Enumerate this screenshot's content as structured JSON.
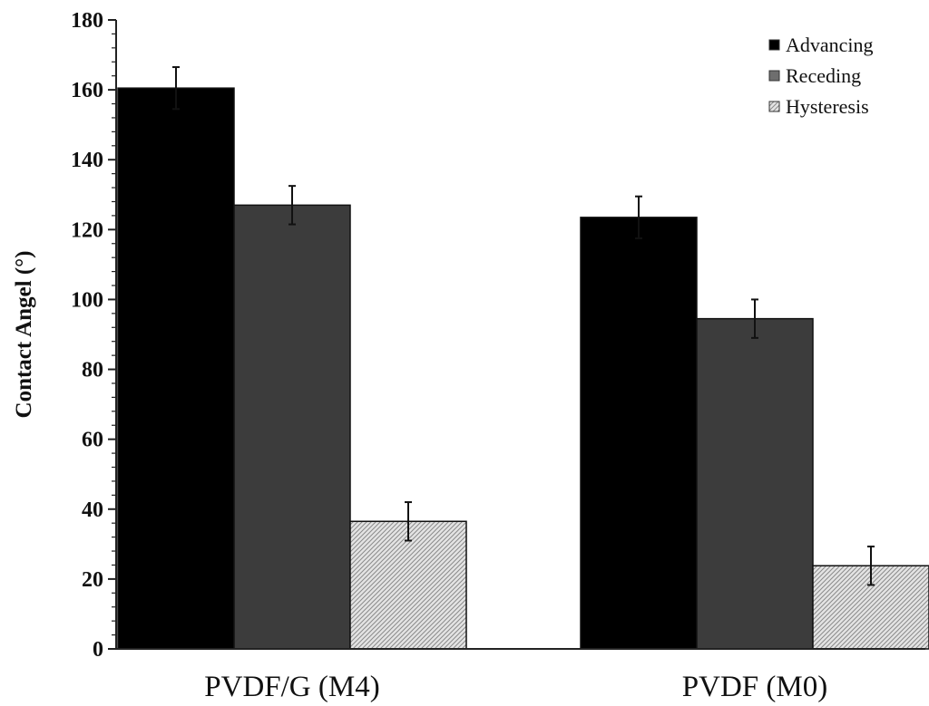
{
  "chart_data": {
    "type": "bar",
    "title": "",
    "xlabel": "",
    "ylabel": "Contact Angel (°)",
    "ylim": [
      0,
      180
    ],
    "ytick_step": 20,
    "categories": [
      "PVDF/G (M4)",
      "PVDF (M0)"
    ],
    "series": [
      {
        "name": "Advancing",
        "color": "#000000",
        "pattern": "solid",
        "values": [
          160.5,
          123.5
        ],
        "errors": [
          6,
          6
        ]
      },
      {
        "name": "Receding",
        "color": "#3c3c3c",
        "pattern": "solid",
        "values": [
          127,
          94.5
        ],
        "errors": [
          5.5,
          5.5
        ]
      },
      {
        "name": "Hysteresis",
        "color": "#d4d4d4",
        "pattern": "hatch",
        "values": [
          36.5,
          23.8
        ],
        "errors": [
          5.5,
          5.5
        ]
      }
    ],
    "legend_position": "top-right",
    "grid": false
  }
}
